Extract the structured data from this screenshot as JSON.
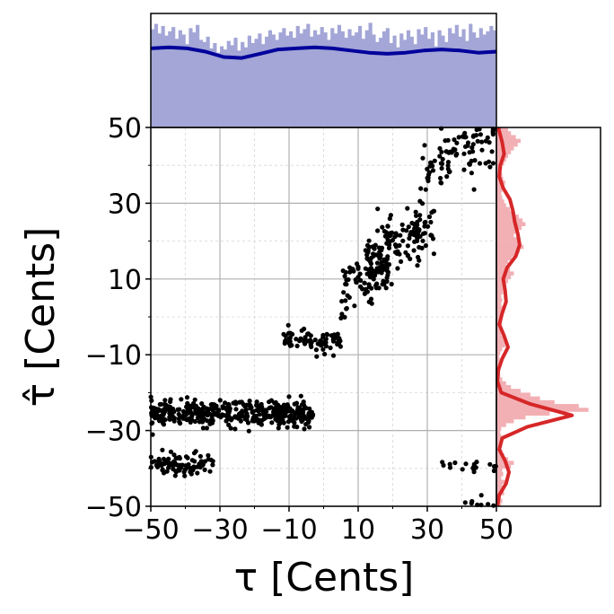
{
  "chart_data": {
    "type": "scatter",
    "title": "",
    "xlabel": "τ [Cents]",
    "ylabel": "τ̂ [Cents]",
    "xlim": [
      -50,
      50
    ],
    "ylim": [
      -50,
      50
    ],
    "xticks": [
      "−50",
      "−30",
      "−10",
      "10",
      "30",
      "50"
    ],
    "yticks": [
      "−50",
      "−30",
      "−10",
      "10",
      "30",
      "50"
    ],
    "xtick_values": [
      -50,
      -30,
      -10,
      10,
      30,
      50
    ],
    "ytick_values": [
      -50,
      -30,
      -10,
      10,
      30,
      50
    ],
    "grid": true,
    "marker_color": "#000000",
    "clusters": [
      {
        "x_range": [
          -50,
          -3
        ],
        "y_center": -25.5,
        "y_spread": 1.6,
        "count": 420
      },
      {
        "x_range": [
          -50,
          -32
        ],
        "y_center": -39,
        "y_spread": 1.6,
        "count": 90
      },
      {
        "x_range": [
          -12,
          5
        ],
        "y_center": -6.5,
        "y_spread": 1.4,
        "count": 75
      },
      {
        "x_range": [
          5,
          20
        ],
        "y_center": 10,
        "y_spread": 3.5,
        "count": 90
      },
      {
        "x_range": [
          12,
          32
        ],
        "y_center": 20,
        "y_spread": 3.5,
        "count": 130
      },
      {
        "x_range": [
          28,
          50
        ],
        "y_center": 44,
        "y_spread": 4.5,
        "count": 110
      },
      {
        "x_range": [
          32,
          50
        ],
        "y_center": -39.5,
        "y_spread": 1.2,
        "count": 18
      },
      {
        "x_range": [
          38,
          50
        ],
        "y_center": -49,
        "y_spread": 0.8,
        "count": 10
      }
    ],
    "top_marginal": {
      "hist_color": "#a3a6d6",
      "kde_color": "#00009b",
      "bins": 100,
      "bin_values": [
        0.92,
        0.97,
        0.88,
        0.95,
        0.86,
        0.9,
        0.94,
        0.83,
        0.91,
        0.87,
        0.78,
        0.93,
        0.89,
        0.96,
        0.82,
        0.8,
        0.85,
        0.74,
        0.79,
        0.7,
        0.76,
        0.73,
        0.81,
        0.77,
        0.84,
        0.72,
        0.8,
        0.75,
        0.86,
        0.79,
        0.83,
        0.88,
        0.78,
        0.85,
        0.91,
        0.87,
        0.82,
        0.89,
        0.93,
        0.86,
        0.9,
        0.84,
        0.95,
        0.88,
        0.92,
        0.97,
        0.85,
        0.91,
        0.87,
        0.94,
        0.89,
        0.82,
        0.93,
        0.88,
        0.96,
        0.9,
        0.84,
        0.92,
        0.86,
        0.89,
        0.95,
        0.83,
        0.91,
        0.98,
        0.87,
        0.8,
        0.84,
        0.9,
        0.93,
        0.79,
        0.86,
        0.75,
        0.88,
        0.82,
        0.91,
        0.85,
        0.78,
        0.92,
        0.87,
        0.94,
        0.83,
        0.89,
        0.76,
        0.91,
        0.86,
        0.8,
        0.93,
        0.88,
        0.96,
        0.85,
        0.92,
        0.81,
        0.97,
        0.89,
        0.84,
        0.93,
        0.87,
        0.9,
        0.95,
        0.91
      ],
      "kde_values": [
        0.74,
        0.75,
        0.74,
        0.71,
        0.66,
        0.65,
        0.69,
        0.73,
        0.74,
        0.75,
        0.74,
        0.72,
        0.7,
        0.69,
        0.7,
        0.72,
        0.73,
        0.72,
        0.7,
        0.71
      ]
    },
    "right_marginal": {
      "hist_color": "#f2b0b4",
      "kde_color": "#d62728",
      "bins": 100,
      "bin_values": [
        0.05,
        0.06,
        0.04,
        0.08,
        0.05,
        0.06,
        0.09,
        0.05,
        0.07,
        0.06,
        0.15,
        0.18,
        0.12,
        0.08,
        0.06,
        0.05,
        0.04,
        0.06,
        0.05,
        0.04,
        0.05,
        0.1,
        0.18,
        0.3,
        0.55,
        0.95,
        0.85,
        0.6,
        0.45,
        0.35,
        0.25,
        0.15,
        0.1,
        0.06,
        0.04,
        0.03,
        0.04,
        0.05,
        0.04,
        0.03,
        0.04,
        0.06,
        0.09,
        0.1,
        0.07,
        0.05,
        0.04,
        0.05,
        0.06,
        0.05,
        0.04,
        0.05,
        0.06,
        0.05,
        0.06,
        0.05,
        0.07,
        0.08,
        0.1,
        0.12,
        0.15,
        0.18,
        0.14,
        0.1,
        0.12,
        0.16,
        0.2,
        0.24,
        0.28,
        0.25,
        0.22,
        0.18,
        0.21,
        0.26,
        0.3,
        0.27,
        0.23,
        0.18,
        0.14,
        0.1,
        0.08,
        0.06,
        0.05,
        0.06,
        0.08,
        0.09,
        0.07,
        0.06,
        0.05,
        0.06,
        0.08,
        0.1,
        0.12,
        0.15,
        0.18,
        0.22,
        0.25,
        0.2,
        0.15,
        0.12
      ],
      "kde_y": [
        -50,
        -47,
        -44,
        -41,
        -38,
        -35,
        -32,
        -29,
        -26,
        -23,
        -20,
        -17,
        -14,
        -11,
        -8,
        -5,
        -2,
        1,
        4,
        7,
        10,
        13,
        16,
        19,
        22,
        25,
        28,
        31,
        34,
        37,
        40,
        43,
        46,
        49,
        50
      ],
      "kde_values": [
        0.01,
        0.03,
        0.1,
        0.13,
        0.09,
        0.03,
        0.06,
        0.32,
        0.78,
        0.35,
        0.05,
        0.01,
        0.02,
        0.06,
        0.12,
        0.08,
        0.03,
        0.06,
        0.1,
        0.09,
        0.07,
        0.11,
        0.2,
        0.24,
        0.22,
        0.19,
        0.17,
        0.14,
        0.07,
        0.03,
        0.04,
        0.08,
        0.06,
        0.03,
        0.02
      ]
    }
  }
}
